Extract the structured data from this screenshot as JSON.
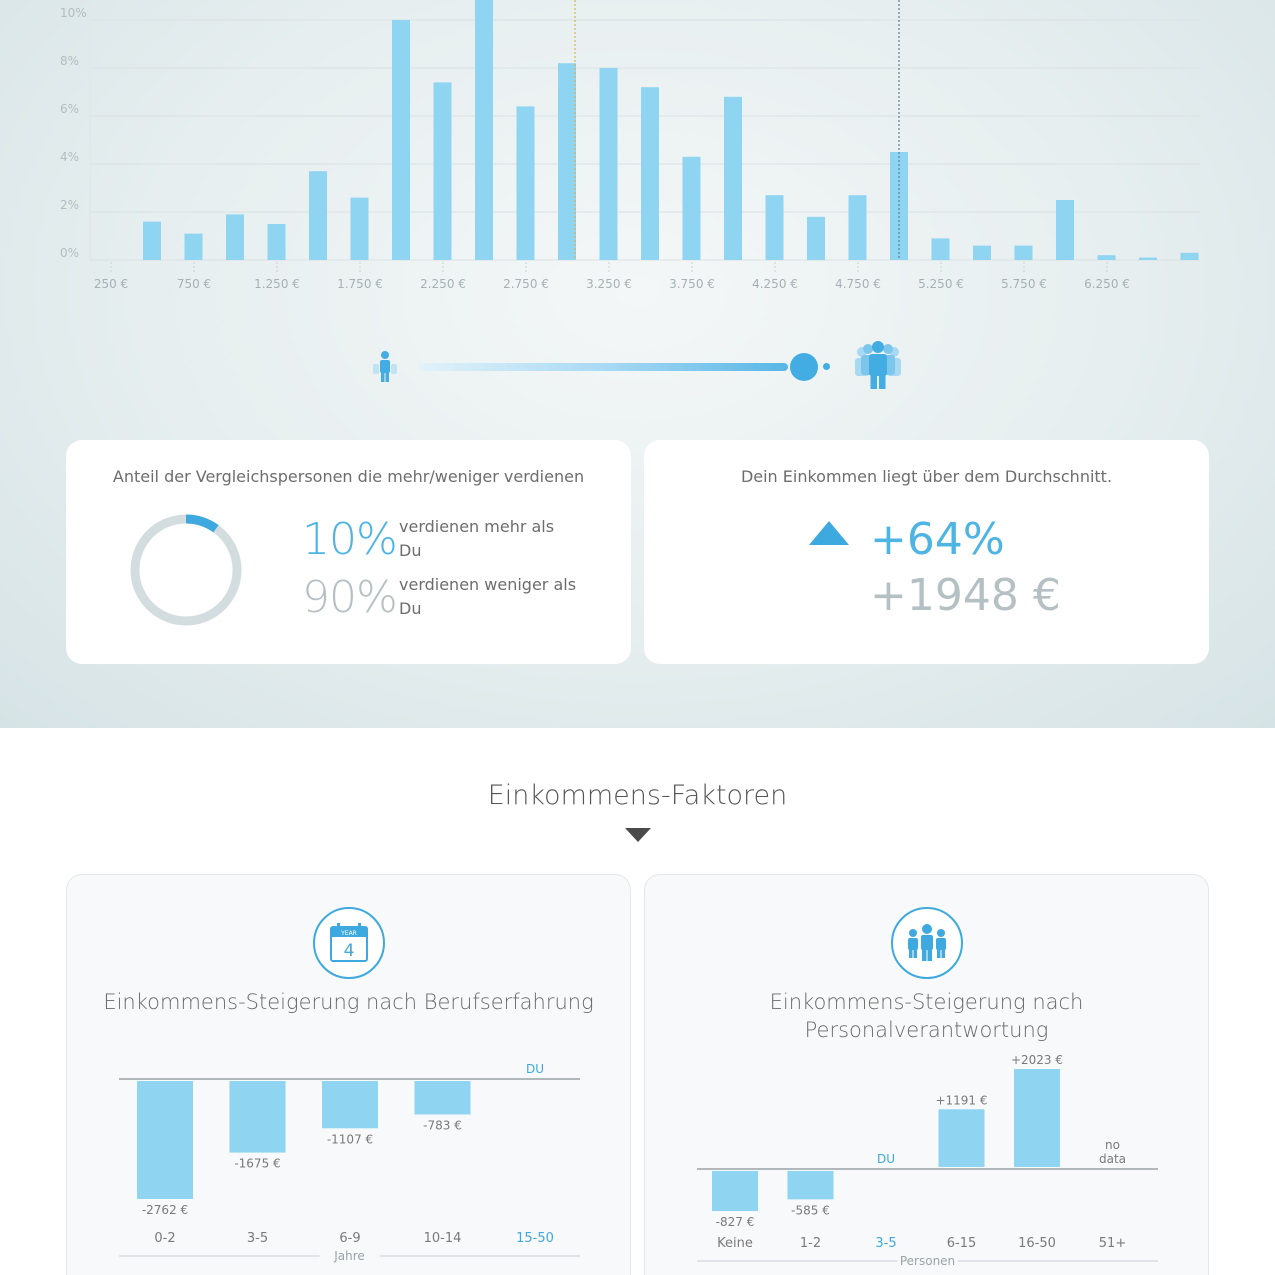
{
  "chart_data": [
    {
      "type": "bar",
      "y_ticks": [
        "0%",
        "2%",
        "4%",
        "6%",
        "8%",
        "10%"
      ],
      "x_tick_labels": [
        "250 €",
        "750 €",
        "1.250 €",
        "1.750 €",
        "2.250 €",
        "2.750 €",
        "3.250 €",
        "3.750 €",
        "4.250 €",
        "4.750 €",
        "5.250 €",
        "5.750 €",
        "6.250 €"
      ],
      "values": [
        1.6,
        1.1,
        1.9,
        1.5,
        3.7,
        2.6,
        10.0,
        7.4,
        11.0,
        6.4,
        8.2,
        8.0,
        7.2,
        4.3,
        6.8,
        2.7,
        1.8,
        2.7,
        4.5,
        0.9,
        0.6,
        0.6,
        2.5,
        0.2,
        0.1,
        0.3
      ],
      "ylim": [
        0,
        10.5
      ],
      "marker_average_after_bar": 10,
      "marker_you_after_bar": 18
    },
    {
      "type": "bar",
      "title": "Einkommens-Steigerung nach Berufserfahrung",
      "categories": [
        "0-2",
        "3-5",
        "6-9",
        "10-14",
        "15-50"
      ],
      "values": [
        -2762,
        -1675,
        -1107,
        -783,
        null
      ],
      "value_labels": [
        "-2762 €",
        "-1675 €",
        "-1107 €",
        "-783 €",
        ""
      ],
      "you_index": 4,
      "you_label": "DU",
      "xlabel": "Jahre",
      "ylim": [
        -2900,
        0
      ]
    },
    {
      "type": "bar",
      "title": "Einkommens-Steigerung nach Personalverantwortung",
      "categories": [
        "Keine",
        "1-2",
        "3-5",
        "6-15",
        "16-50",
        "51+"
      ],
      "values": [
        -827,
        -585,
        null,
        1191,
        2023,
        null
      ],
      "value_labels": [
        "-827 €",
        "-585 €",
        "",
        "+1191 €",
        "+2023 €",
        ""
      ],
      "no_data_label": [
        "no",
        "data"
      ],
      "no_data_index": 5,
      "you_index": 2,
      "you_label": "DU",
      "xlabel": "Personen",
      "ylim": [
        -900,
        2100
      ]
    }
  ],
  "comparison": {
    "title": "Anteil der Vergleichspersonen die mehr/weniger verdienen",
    "more_pct": "10%",
    "more_text": "verdienen mehr als Du",
    "less_pct": "90%",
    "less_text": "verdienen weniger als Du",
    "more_fraction": 0.1
  },
  "average": {
    "title": "Dein Einkommen liegt über dem Durchschnitt.",
    "pct": "+64%",
    "eur": "+1948 €"
  },
  "slider": {
    "level": 0.95
  },
  "factors": {
    "title": "Einkommens-Faktoren",
    "exp_title": "Einkommens-Steigerung nach Berufserfahrung",
    "exp_icon_label": "YEAR",
    "exp_icon_number": "4",
    "staff_title": "Einkommens-Steigerung nach Personalverantwortung"
  },
  "colors": {
    "bar": "#8fd4f1",
    "accent": "#3ea9de",
    "grey_text": "#999999",
    "donut_track": "#d3dde0"
  }
}
